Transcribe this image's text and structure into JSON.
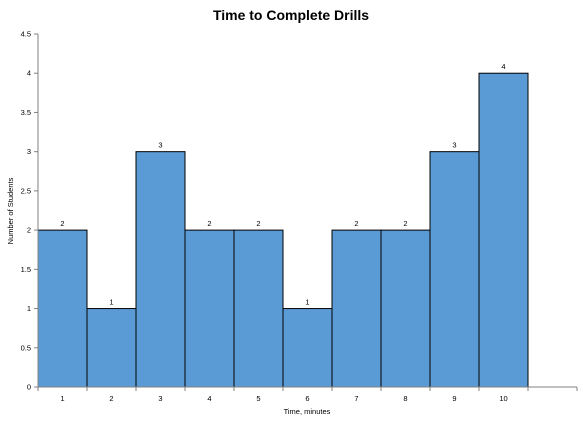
{
  "chart_data": {
    "type": "bar",
    "title": "Time to Complete Drills",
    "xlabel": "Time, minutes",
    "ylabel": "Number of Students",
    "categories": [
      "1",
      "2",
      "3",
      "4",
      "5",
      "6",
      "7",
      "8",
      "9",
      "10"
    ],
    "values": [
      2,
      1,
      3,
      2,
      2,
      1,
      2,
      2,
      3,
      4
    ],
    "data_labels": [
      "2",
      "1",
      "3",
      "2",
      "2",
      "1",
      "2",
      "2",
      "3",
      "4"
    ],
    "y_ticks": [
      "0",
      "0.5",
      "1",
      "1.5",
      "2",
      "2.5",
      "3",
      "3.5",
      "4",
      "4.5"
    ],
    "ylim": [
      0,
      4.5
    ],
    "grid": false,
    "legend": "none",
    "bar_color": "#5B9BD5",
    "bar_edge_color": "#000000"
  }
}
